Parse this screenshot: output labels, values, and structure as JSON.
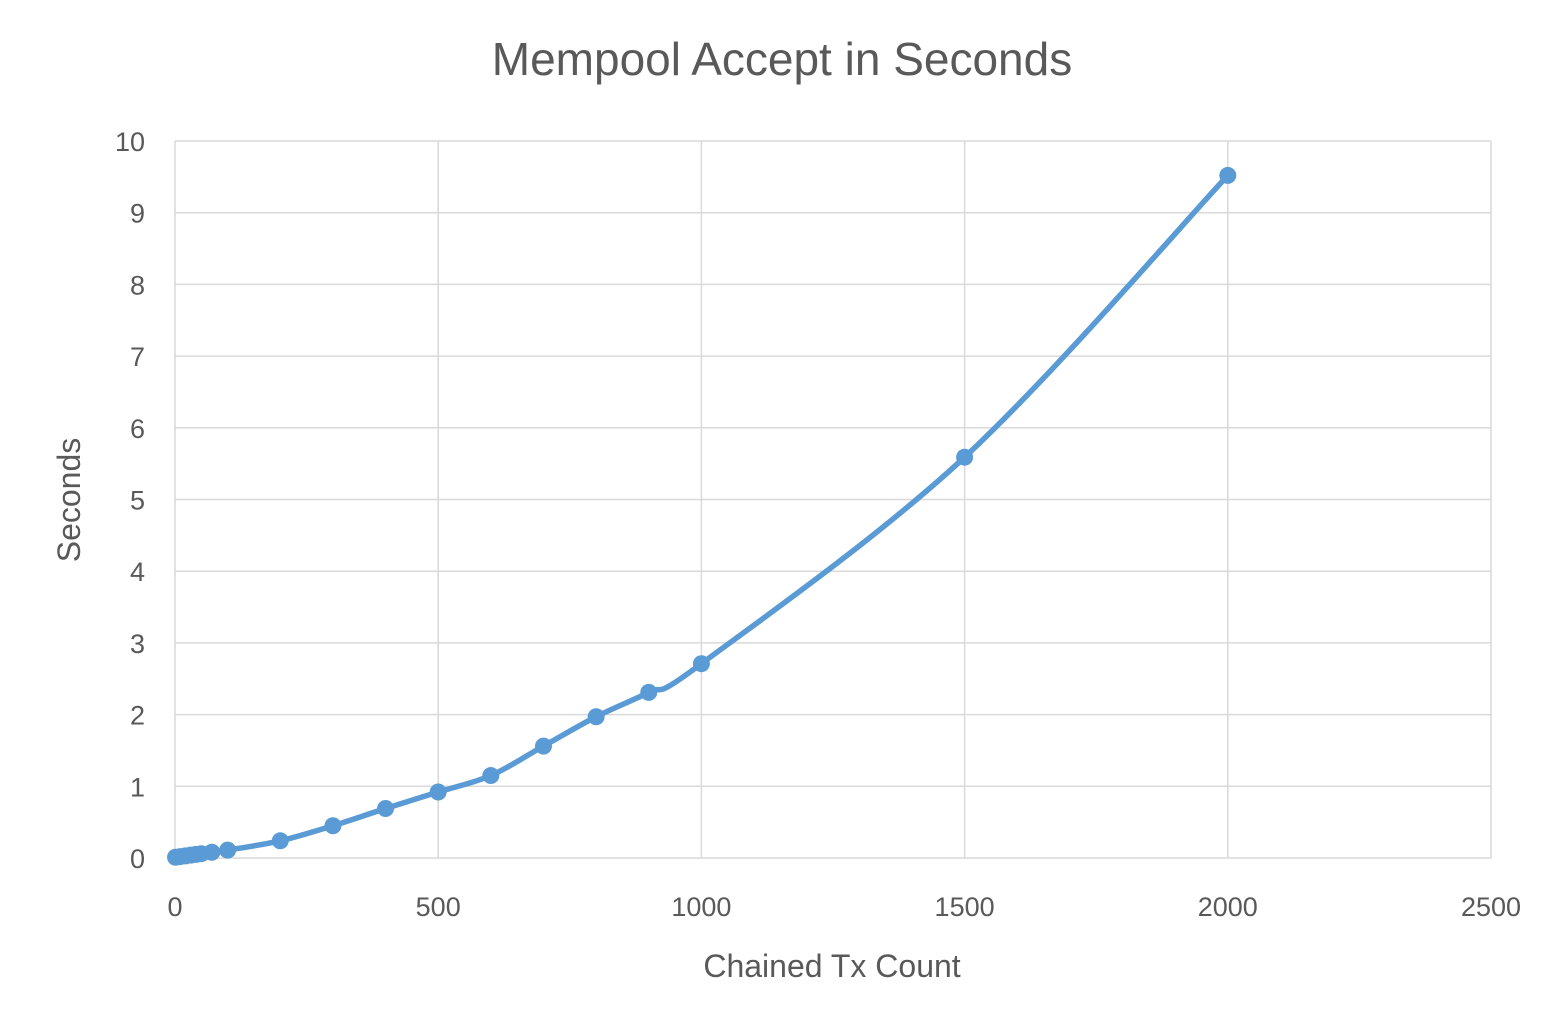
{
  "chart_data": {
    "type": "line",
    "title": "Mempool Accept in Seconds",
    "xlabel": "Chained Tx Count",
    "ylabel": "Seconds",
    "xlim": [
      0,
      2500
    ],
    "ylim": [
      0,
      10
    ],
    "x_ticks": [
      "0",
      "500",
      "1000",
      "1500",
      "2000",
      "2500"
    ],
    "y_ticks": [
      "0",
      "1",
      "2",
      "3",
      "4",
      "5",
      "6",
      "7",
      "8",
      "9",
      "10"
    ],
    "grid": true,
    "legend": "none",
    "color": "#5b9bd5",
    "series": [
      {
        "x": [
          1,
          10,
          20,
          30,
          40,
          50,
          70,
          100,
          200,
          300,
          400,
          500,
          600,
          700,
          800,
          900,
          1000,
          1500,
          2000
        ],
        "y": [
          0.01,
          0.02,
          0.03,
          0.04,
          0.05,
          0.06,
          0.08,
          0.11,
          0.24,
          0.45,
          0.69,
          0.92,
          1.15,
          1.56,
          1.97,
          2.31,
          2.71,
          5.59,
          9.52
        ]
      }
    ]
  }
}
